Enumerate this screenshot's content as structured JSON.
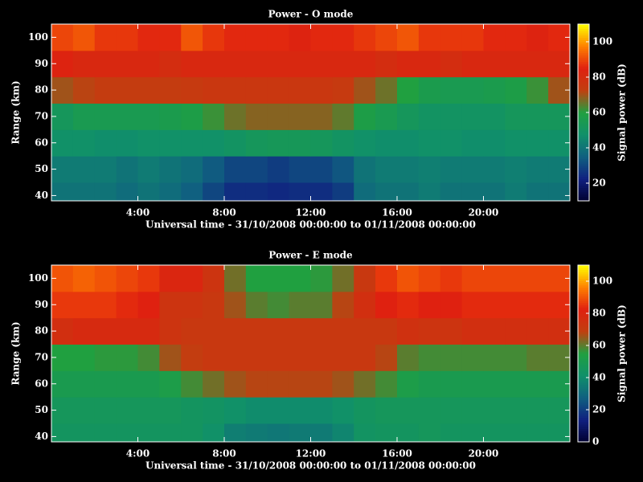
{
  "chart_data": [
    {
      "type": "heatmap",
      "title": "Power - O mode",
      "x_label": "Universal time - 31/10/2008 00:00:00 to 01/11/2008 00:00:00",
      "y_label": "Range (km)",
      "colorbar_label": "Signal power (dB)",
      "x_bins": [
        0,
        1,
        2,
        3,
        4,
        5,
        6,
        7,
        8,
        9,
        10,
        11,
        12,
        13,
        14,
        15,
        16,
        17,
        18,
        19,
        20,
        21,
        22,
        23,
        24
      ],
      "y_bins": [
        38,
        45,
        55,
        65,
        75,
        85,
        95,
        105
      ],
      "z": [
        [
          40,
          40,
          40,
          38,
          40,
          38,
          35,
          30,
          25,
          25,
          24,
          25,
          25,
          28,
          38,
          40,
          40,
          42,
          40,
          40,
          40,
          42,
          40,
          40
        ],
        [
          42,
          42,
          42,
          40,
          42,
          40,
          38,
          34,
          30,
          30,
          28,
          30,
          30,
          33,
          40,
          42,
          42,
          43,
          42,
          42,
          42,
          43,
          42,
          42
        ],
        [
          48,
          48,
          47,
          47,
          48,
          48,
          48,
          48,
          50,
          52,
          53,
          53,
          52,
          50,
          48,
          47,
          47,
          48,
          48,
          47,
          47,
          48,
          48,
          48
        ],
        [
          52,
          55,
          55,
          55,
          55,
          56,
          58,
          62,
          66,
          68,
          68,
          68,
          68,
          65,
          58,
          55,
          52,
          50,
          50,
          50,
          50,
          52,
          52,
          52
        ],
        [
          70,
          72,
          74,
          74,
          74,
          74,
          75,
          76,
          76,
          76,
          76,
          76,
          76,
          75,
          70,
          66,
          60,
          56,
          55,
          55,
          56,
          58,
          62,
          70
        ],
        [
          84,
          82,
          82,
          82,
          82,
          80,
          82,
          82,
          82,
          82,
          82,
          82,
          82,
          82,
          82,
          80,
          82,
          82,
          80,
          82,
          82,
          82,
          82,
          82
        ],
        [
          90,
          92,
          88,
          88,
          86,
          86,
          92,
          88,
          86,
          86,
          86,
          84,
          86,
          86,
          88,
          90,
          92,
          88,
          88,
          88,
          86,
          86,
          84,
          86
        ]
      ],
      "xlim": [
        0,
        24
      ],
      "xticks": [
        {
          "value": 4,
          "label": "4:00"
        },
        {
          "value": 8,
          "label": "8:00"
        },
        {
          "value": 12,
          "label": "12:00"
        },
        {
          "value": 16,
          "label": "16:00"
        },
        {
          "value": 20,
          "label": "20:00"
        }
      ],
      "ylim": [
        38,
        105
      ],
      "yticks": [
        40,
        50,
        60,
        70,
        80,
        90,
        100
      ],
      "zlim": [
        10,
        110
      ],
      "zticks": [
        20,
        40,
        60,
        80,
        100
      ],
      "colormap": [
        "#000030",
        "#102080",
        "#106080",
        "#10906a",
        "#20a040",
        "#c04010",
        "#e02010",
        "#ff8000",
        "#ffff00"
      ]
    },
    {
      "type": "heatmap",
      "title": "Power - E mode",
      "x_label": "Universal time - 31/10/2008 00:00:00 to 01/11/2008 00:00:00",
      "y_label": "Range (km)",
      "colorbar_label": "Signal power (dB)",
      "x_bins": [
        0,
        1,
        2,
        3,
        4,
        5,
        6,
        7,
        8,
        9,
        10,
        11,
        12,
        13,
        14,
        15,
        16,
        17,
        18,
        19,
        20,
        21,
        22,
        23,
        24
      ],
      "y_bins": [
        38,
        45,
        55,
        65,
        75,
        85,
        95,
        105
      ],
      "z": [
        [
          45,
          45,
          45,
          45,
          45,
          45,
          45,
          42,
          36,
          35,
          34,
          35,
          35,
          38,
          44,
          45,
          45,
          46,
          45,
          45,
          45,
          45,
          45,
          45
        ],
        [
          46,
          46,
          46,
          46,
          46,
          46,
          45,
          44,
          42,
          40,
          40,
          40,
          40,
          42,
          45,
          46,
          46,
          46,
          46,
          46,
          46,
          46,
          46,
          46
        ],
        [
          50,
          50,
          50,
          50,
          50,
          52,
          58,
          62,
          66,
          68,
          68,
          68,
          68,
          66,
          62,
          58,
          52,
          50,
          50,
          50,
          50,
          50,
          50,
          50
        ],
        [
          55,
          55,
          56,
          56,
          58,
          66,
          70,
          72,
          72,
          72,
          72,
          72,
          72,
          72,
          72,
          68,
          60,
          58,
          58,
          58,
          58,
          58,
          60,
          60
        ],
        [
          76,
          78,
          78,
          78,
          78,
          74,
          72,
          72,
          72,
          72,
          72,
          72,
          72,
          72,
          72,
          72,
          75,
          74,
          74,
          76,
          76,
          76,
          76,
          76
        ],
        [
          86,
          86,
          86,
          84,
          82,
          74,
          74,
          72,
          66,
          60,
          58,
          60,
          60,
          68,
          76,
          82,
          84,
          82,
          82,
          84,
          84,
          84,
          84,
          84
        ],
        [
          90,
          92,
          90,
          88,
          86,
          80,
          80,
          74,
          62,
          55,
          55,
          55,
          56,
          62,
          72,
          86,
          90,
          88,
          86,
          88,
          88,
          88,
          88,
          88
        ]
      ],
      "xlim": [
        0,
        24
      ],
      "xticks": [
        {
          "value": 4,
          "label": "4:00"
        },
        {
          "value": 8,
          "label": "8:00"
        },
        {
          "value": 12,
          "label": "12:00"
        },
        {
          "value": 16,
          "label": "16:00"
        },
        {
          "value": 20,
          "label": "20:00"
        }
      ],
      "ylim": [
        38,
        105
      ],
      "yticks": [
        40,
        50,
        60,
        70,
        80,
        90,
        100
      ],
      "zlim": [
        0,
        110
      ],
      "zticks": [
        0,
        20,
        40,
        60,
        80,
        100
      ],
      "colormap": [
        "#000030",
        "#102080",
        "#106080",
        "#10906a",
        "#20a040",
        "#c04010",
        "#e02010",
        "#ff8000",
        "#ffff00"
      ]
    }
  ]
}
